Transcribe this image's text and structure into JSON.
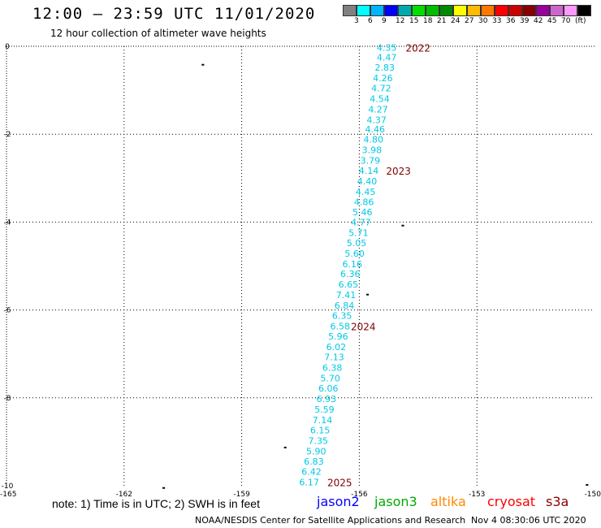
{
  "header": {
    "title": "12:00 – 23:59 UTC 11/01/2020",
    "subtitle": "12 hour collection of altimeter wave heights"
  },
  "legend": {
    "colors": [
      "#808080",
      "#00ffff",
      "#00b4ff",
      "#0000ff",
      "#00aaaa",
      "#00dd00",
      "#00bb00",
      "#008800",
      "#ffff00",
      "#ffbb00",
      "#ff7700",
      "#ff0000",
      "#cc0000",
      "#880000",
      "#990099",
      "#cc66cc",
      "#ff99ff",
      "#000000"
    ],
    "labels": [
      "3",
      "6",
      "9",
      "12",
      "15",
      "18",
      "21",
      "24",
      "27",
      "30",
      "33",
      "36",
      "39",
      "42",
      "45",
      "70",
      "(ft)"
    ]
  },
  "chart_data": {
    "type": "scatter",
    "xlim": [
      -165,
      -150
    ],
    "ylim": [
      -10,
      0
    ],
    "xticks": [
      "-165",
      "-162",
      "-159",
      "-156",
      "-153",
      "-150"
    ],
    "yticks": [
      "0",
      "-2",
      "-4",
      "-6",
      "-8",
      "-10"
    ],
    "grid": true,
    "points": [
      {
        "x": -155.3,
        "y": -0.03,
        "label": "4.35"
      },
      {
        "x": -155.3,
        "y": -0.25,
        "label": "4.47"
      },
      {
        "x": -155.35,
        "y": -0.48,
        "label": "2.83"
      },
      {
        "x": -155.4,
        "y": -0.72,
        "label": "4.26"
      },
      {
        "x": -155.44,
        "y": -0.95,
        "label": "4.72"
      },
      {
        "x": -155.48,
        "y": -1.19,
        "label": "4.54"
      },
      {
        "x": -155.52,
        "y": -1.43,
        "label": "4.27"
      },
      {
        "x": -155.56,
        "y": -1.67,
        "label": "4.37"
      },
      {
        "x": -155.6,
        "y": -1.89,
        "label": "4.46"
      },
      {
        "x": -155.64,
        "y": -2.12,
        "label": "4.80"
      },
      {
        "x": -155.68,
        "y": -2.36,
        "label": "3.98"
      },
      {
        "x": -155.72,
        "y": -2.6,
        "label": "3.79"
      },
      {
        "x": -155.76,
        "y": -2.83,
        "label": "4.14"
      },
      {
        "x": -155.8,
        "y": -3.07,
        "label": "4.40"
      },
      {
        "x": -155.84,
        "y": -3.31,
        "label": "4.45"
      },
      {
        "x": -155.88,
        "y": -3.54,
        "label": "4.86"
      },
      {
        "x": -155.92,
        "y": -3.77,
        "label": "5.46"
      },
      {
        "x": -155.96,
        "y": -4.0,
        "label": "4.77"
      },
      {
        "x": -156.02,
        "y": -4.24,
        "label": "5.71"
      },
      {
        "x": -156.07,
        "y": -4.47,
        "label": "5.05"
      },
      {
        "x": -156.12,
        "y": -4.71,
        "label": "5.60"
      },
      {
        "x": -156.18,
        "y": -4.95,
        "label": "6.16"
      },
      {
        "x": -156.23,
        "y": -5.18,
        "label": "6.36"
      },
      {
        "x": -156.28,
        "y": -5.42,
        "label": "6.65"
      },
      {
        "x": -156.34,
        "y": -5.66,
        "label": "7.41"
      },
      {
        "x": -156.38,
        "y": -5.9,
        "label": "6.84"
      },
      {
        "x": -156.44,
        "y": -6.13,
        "label": "6.35"
      },
      {
        "x": -156.49,
        "y": -6.37,
        "label": "6.58"
      },
      {
        "x": -156.54,
        "y": -6.6,
        "label": "5.96"
      },
      {
        "x": -156.59,
        "y": -6.84,
        "label": "6.02"
      },
      {
        "x": -156.64,
        "y": -7.07,
        "label": "7.13"
      },
      {
        "x": -156.69,
        "y": -7.31,
        "label": "6.38"
      },
      {
        "x": -156.74,
        "y": -7.55,
        "label": "5.70"
      },
      {
        "x": -156.79,
        "y": -7.78,
        "label": "6.06"
      },
      {
        "x": -156.84,
        "y": -8.02,
        "label": "6.93"
      },
      {
        "x": -156.89,
        "y": -8.26,
        "label": "5.59"
      },
      {
        "x": -156.94,
        "y": -8.5,
        "label": "7.14"
      },
      {
        "x": -157.0,
        "y": -8.73,
        "label": "6.15"
      },
      {
        "x": -157.05,
        "y": -8.97,
        "label": "7.35"
      },
      {
        "x": -157.1,
        "y": -9.21,
        "label": "5.90"
      },
      {
        "x": -157.16,
        "y": -9.45,
        "label": "6.83"
      },
      {
        "x": -157.22,
        "y": -9.68,
        "label": "6.42"
      },
      {
        "x": -157.28,
        "y": -9.92,
        "label": "6.17"
      }
    ],
    "time_labels": [
      {
        "x": -154.5,
        "y": -0.03,
        "label": "2022"
      },
      {
        "x": -155.0,
        "y": -2.83,
        "label": "2023"
      },
      {
        "x": -155.9,
        "y": -6.37,
        "label": "2024"
      },
      {
        "x": -156.5,
        "y": -9.92,
        "label": "2025"
      }
    ],
    "land_marks": [
      {
        "x": -160.0,
        "y": -0.42
      },
      {
        "x": -154.9,
        "y": -4.08
      },
      {
        "x": -155.8,
        "y": -5.65
      },
      {
        "x": -157.9,
        "y": -9.13
      },
      {
        "x": -161.0,
        "y": -10.05
      },
      {
        "x": -150.2,
        "y": -9.98
      }
    ],
    "label_color": "#00c8e6",
    "time_color": "#800000"
  },
  "footer": {
    "note": "note: 1) Time is in UTC; 2) SWH is in feet",
    "satellites": [
      {
        "name": "jason2",
        "color": "#0000ff"
      },
      {
        "name": "jason3",
        "color": "#00aa00"
      },
      {
        "name": "altika",
        "color": "#ff8800"
      },
      {
        "name": "cryosat",
        "color": "#ff0000"
      },
      {
        "name": "s3a",
        "color": "#880000"
      }
    ],
    "credit": "NOAA/NESDIS Center for Satellite Applications and Research",
    "timestamp": "Nov  4 08:30:06 UTC 2020"
  }
}
